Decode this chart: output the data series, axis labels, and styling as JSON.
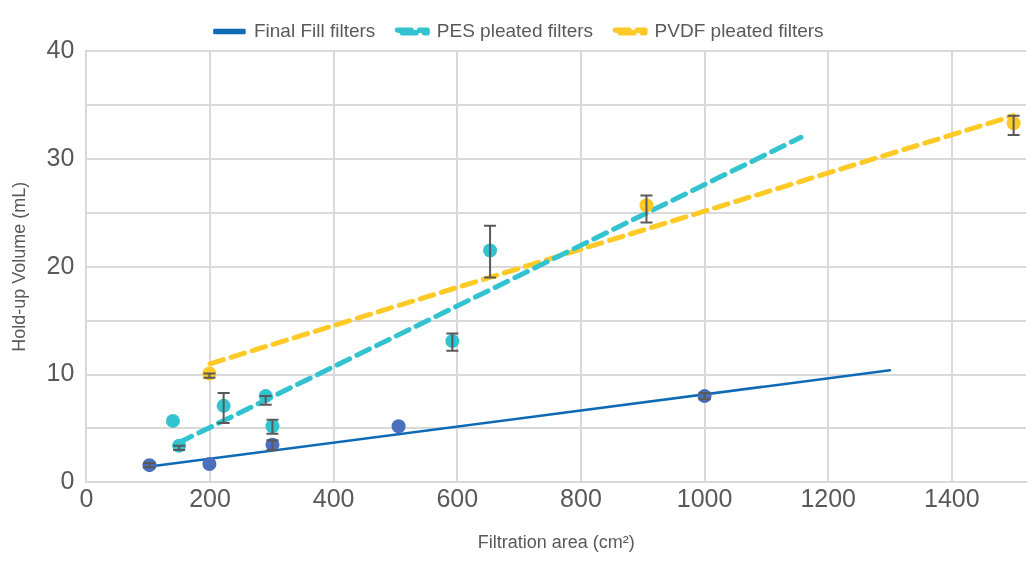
{
  "chart_data": {
    "type": "scatter",
    "xlabel": "Filtration area (cm²)",
    "ylabel": "Hold-up Volume (mL)",
    "xlim": [
      0,
      1520
    ],
    "xticks": [
      0,
      200,
      400,
      600,
      800,
      1000,
      1200,
      1400
    ],
    "ylim": [
      0,
      40
    ],
    "yticks": [
      0,
      {
        "value": 5,
        "label": null
      },
      10,
      {
        "value": 15,
        "label": null
      },
      20,
      {
        "value": 25,
        "label": null
      },
      30,
      {
        "value": 35,
        "label": null
      },
      40
    ],
    "grid": true,
    "legend": "top",
    "series": [
      {
        "color": "#4a6fbd",
        "marker": "circle",
        "x": [
          102,
          199,
          301,
          505,
          1000
        ],
        "values": [
          1.6,
          1.7,
          3.5,
          5.2,
          8.0
        ],
        "errors": [
          0.2,
          null,
          [
            3.0,
            3.9
          ],
          null,
          0.3
        ]
      },
      {
        "color": "#33c3d0",
        "marker": "circle",
        "x": [
          140,
          150,
          222,
          290,
          301,
          592,
          653
        ],
        "values": [
          5.7,
          3.4,
          7.1,
          8.0,
          5.2,
          13.1,
          21.5
        ],
        "errors": [
          null,
          [
            3.0,
            3.4
          ],
          [
            5.5,
            8.3
          ],
          [
            7.2,
            8.0
          ],
          [
            4.5,
            5.8
          ],
          [
            12.2,
            13.8
          ],
          [
            19.0,
            23.8
          ]
        ]
      },
      {
        "color": "#ffc926",
        "marker": "circle",
        "x": [
          199,
          906,
          1500
        ],
        "values": [
          10.1,
          25.7,
          33.3
        ],
        "errors": [
          [
            9.7,
            10.1
          ],
          [
            24.1,
            26.6
          ],
          [
            32.2,
            34.0
          ]
        ]
      },
      {
        "type": "line",
        "name": "Final Fill filters",
        "color": "#0e6ab4",
        "marker": "none",
        "line_style": "solid",
        "x": [
          93,
          1300
        ],
        "values": [
          1.4,
          10.4
        ]
      },
      {
        "type": "line",
        "name": "PES pleated filters",
        "color": "#33c3d0",
        "marker": "none",
        "line_style": "dashed",
        "x": [
          150,
          1156
        ],
        "values": [
          3.7,
          32.0
        ]
      },
      {
        "type": "line",
        "name": "PVDF pleated filters",
        "color": "#ffc926",
        "marker": "none",
        "line_style": "dashed",
        "x": [
          200,
          1500
        ],
        "values": [
          11.0,
          34.0
        ]
      }
    ]
  }
}
